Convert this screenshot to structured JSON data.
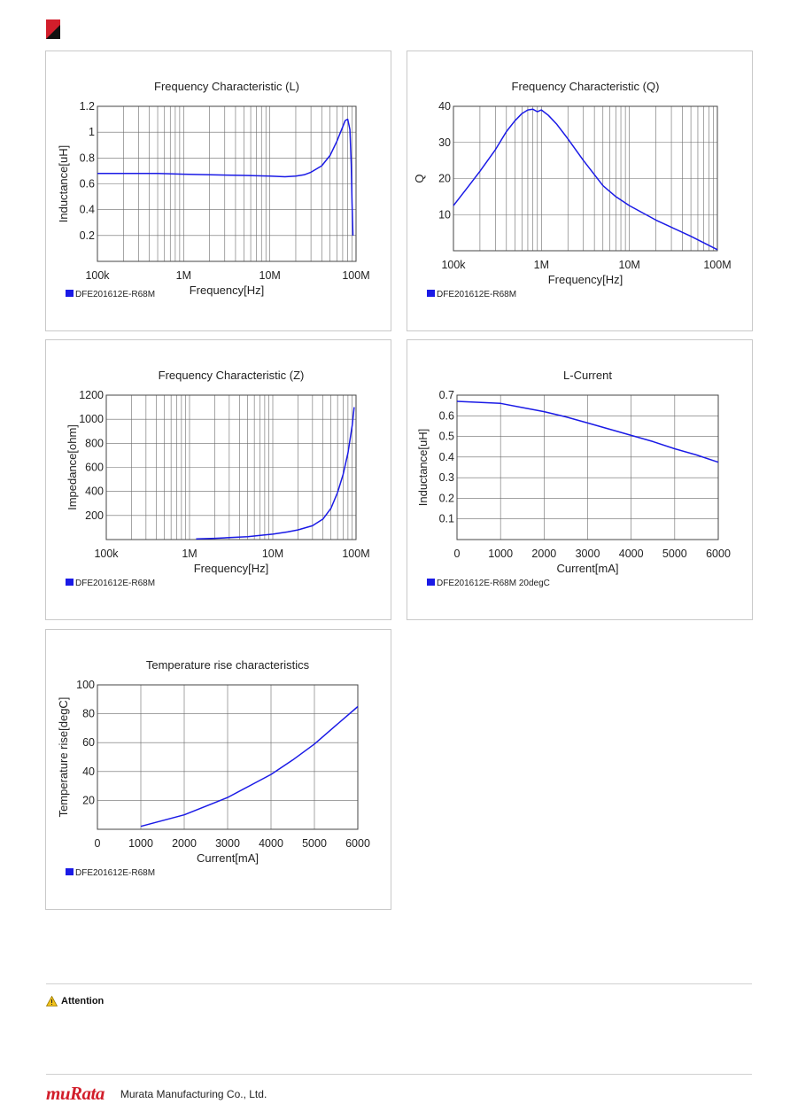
{
  "page": {
    "attention_label": "Attention",
    "company_name": "Murata Manufacturing Co., Ltd.",
    "logo_text": "muRata",
    "accent_color": "#d21e2b"
  },
  "chart_data": [
    {
      "type": "line",
      "title": "Frequency   Characteristic (L)",
      "xlabel": "Frequency[Hz]",
      "ylabel": "Inductance[uH]",
      "xscale": "log",
      "xlim": [
        100000,
        100000000
      ],
      "ylim": [
        0,
        1.2
      ],
      "xticks": [
        100000,
        1000000,
        10000000,
        100000000
      ],
      "xtick_labels": [
        "100k",
        "1M",
        "10M",
        "100M"
      ],
      "yticks": [
        0.2,
        0.4,
        0.6,
        0.8,
        1,
        1.2
      ],
      "ytick_labels": [
        "0.2",
        "0.4",
        "0.6",
        "0.8",
        "1",
        "1.2"
      ],
      "grid": true,
      "legend_position": "bottom-left",
      "series": [
        {
          "name": "DFE201612E-R68M",
          "color": "#1a1ae6",
          "x": [
            100000,
            200000,
            500000,
            1000000,
            2000000,
            5000000,
            10000000,
            15000000,
            20000000,
            25000000,
            30000000,
            40000000,
            50000000,
            60000000,
            70000000,
            75000000,
            80000000,
            85000000,
            88000000,
            90000000,
            92000000
          ],
          "y": [
            0.68,
            0.68,
            0.68,
            0.675,
            0.67,
            0.665,
            0.66,
            0.655,
            0.66,
            0.67,
            0.69,
            0.74,
            0.82,
            0.93,
            1.04,
            1.09,
            1.1,
            1.02,
            0.75,
            0.45,
            0.2
          ]
        }
      ]
    },
    {
      "type": "line",
      "title": "Frequency   Characteristic (Q)",
      "xlabel": "Frequency[Hz]",
      "ylabel": "Q",
      "xscale": "log",
      "xlim": [
        100000,
        100000000
      ],
      "ylim": [
        0,
        40
      ],
      "xticks": [
        100000,
        1000000,
        10000000,
        100000000
      ],
      "xtick_labels": [
        "100k",
        "1M",
        "10M",
        "100M"
      ],
      "yticks": [
        10,
        20,
        30,
        40
      ],
      "ytick_labels": [
        "10",
        "20",
        "30",
        "40"
      ],
      "grid": true,
      "legend_position": "bottom-left",
      "series": [
        {
          "name": "DFE201612E-R68M",
          "color": "#1a1ae6",
          "x": [
            100000,
            150000,
            200000,
            300000,
            400000,
            500000,
            600000,
            700000,
            800000,
            900000,
            1000000,
            1200000,
            1500000,
            2000000,
            3000000,
            5000000,
            7000000,
            10000000,
            20000000,
            50000000,
            100000000
          ],
          "y": [
            12.5,
            18,
            22,
            28,
            33,
            36,
            38,
            39,
            39.2,
            38.5,
            39,
            37.5,
            35,
            31,
            25,
            18,
            15,
            12.5,
            8.5,
            4,
            0.3
          ]
        }
      ]
    },
    {
      "type": "line",
      "title": "Frequency   Characteristic (Z)",
      "xlabel": "Frequency[Hz]",
      "ylabel": "Impedance[ohm]",
      "xscale": "log",
      "xlim": [
        100000,
        100000000
      ],
      "ylim": [
        0,
        1200
      ],
      "xticks": [
        100000,
        1000000,
        10000000,
        100000000
      ],
      "xtick_labels": [
        "100k",
        "1M",
        "10M",
        "100M"
      ],
      "yticks": [
        200,
        400,
        600,
        800,
        1000,
        1200
      ],
      "ytick_labels": [
        "200",
        "400",
        "600",
        "800",
        "1000",
        "1200"
      ],
      "grid": true,
      "legend_position": "bottom-left",
      "series": [
        {
          "name": "DFE201612E-R68M",
          "color": "#1a1ae6",
          "x": [
            1200000,
            2000000,
            3000000,
            5000000,
            8000000,
            10000000,
            15000000,
            20000000,
            30000000,
            40000000,
            50000000,
            60000000,
            70000000,
            80000000,
            90000000,
            95000000
          ],
          "y": [
            5,
            10,
            16,
            24,
            38,
            45,
            63,
            80,
            115,
            170,
            260,
            390,
            540,
            720,
            950,
            1100
          ]
        }
      ]
    },
    {
      "type": "line",
      "title": "L-Current",
      "xlabel": "Current[mA]",
      "ylabel": "Inductance[uH]",
      "xlim": [
        0,
        6000
      ],
      "ylim": [
        0,
        0.7
      ],
      "xticks": [
        0,
        1000,
        2000,
        3000,
        4000,
        5000,
        6000
      ],
      "xtick_labels": [
        "0",
        "1000",
        "2000",
        "3000",
        "4000",
        "5000",
        "6000"
      ],
      "yticks": [
        0.1,
        0.2,
        0.3,
        0.4,
        0.5,
        0.6,
        0.7
      ],
      "ytick_labels": [
        "0.1",
        "0.2",
        "0.3",
        "0.4",
        "0.5",
        "0.6",
        "0.7"
      ],
      "grid": true,
      "legend_position": "bottom-left",
      "series": [
        {
          "name": "DFE201612E-R68M 20degC",
          "color": "#1a1ae6",
          "x": [
            0,
            500,
            1000,
            1500,
            2000,
            2500,
            3000,
            3500,
            4000,
            4500,
            5000,
            5500,
            6000
          ],
          "y": [
            0.67,
            0.665,
            0.66,
            0.64,
            0.62,
            0.595,
            0.565,
            0.535,
            0.505,
            0.475,
            0.44,
            0.41,
            0.375
          ]
        }
      ]
    },
    {
      "type": "line",
      "title": "Temperature rise characteristics",
      "xlabel": "Current[mA]",
      "ylabel": "Temperature rise[degC]",
      "xlim": [
        0,
        6000
      ],
      "ylim": [
        0,
        100
      ],
      "xticks": [
        0,
        1000,
        2000,
        3000,
        4000,
        5000,
        6000
      ],
      "xtick_labels": [
        "0",
        "1000",
        "2000",
        "3000",
        "4000",
        "5000",
        "6000"
      ],
      "yticks": [
        20,
        40,
        60,
        80,
        100
      ],
      "ytick_labels": [
        "20",
        "40",
        "60",
        "80",
        "100"
      ],
      "grid": true,
      "legend_position": "bottom-left",
      "series": [
        {
          "name": "DFE201612E-R68M",
          "color": "#1a1ae6",
          "x": [
            1000,
            1500,
            2000,
            2500,
            3000,
            3500,
            4000,
            4500,
            5000,
            5500,
            6000
          ],
          "y": [
            2,
            6,
            10,
            16,
            22,
            30,
            38,
            48,
            59,
            72,
            85
          ]
        }
      ]
    }
  ]
}
